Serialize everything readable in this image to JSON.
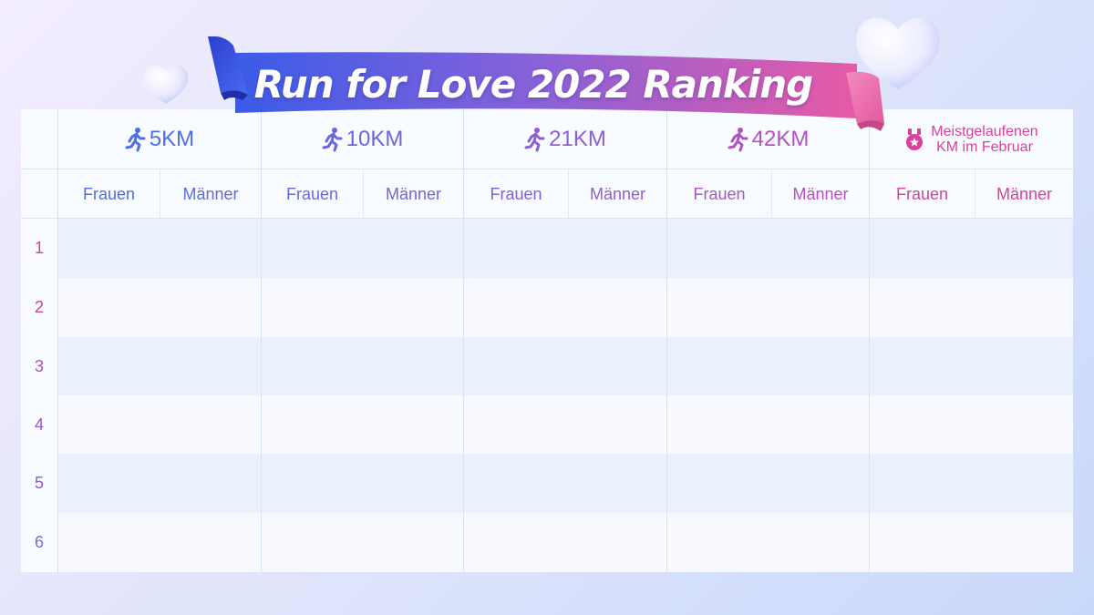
{
  "title": "Run for Love 2022 Ranking",
  "categories": [
    {
      "label": "5KM",
      "icon": "running-person-icon",
      "color": "#4f6ee6"
    },
    {
      "label": "10KM",
      "icon": "running-person-icon",
      "color": "#6a66df"
    },
    {
      "label": "21KM",
      "icon": "running-person-icon",
      "color": "#8c5fd5"
    },
    {
      "label": "42KM",
      "icon": "running-person-icon",
      "color": "#b052c4"
    },
    {
      "label_line1": "Meistgelaufenen",
      "label_line2": "KM im Februar",
      "icon": "medal-icon",
      "color": "#dd3f9a"
    }
  ],
  "subheaders": {
    "women": "Frauen",
    "men": "Männer"
  },
  "ranks": [
    "1",
    "2",
    "3",
    "4",
    "5",
    "6"
  ],
  "colors": {
    "banner_start": "#3a5ce8",
    "banner_end": "#e75aa6",
    "rank_start": "#d9418d",
    "rank_end": "#7a6cda"
  }
}
